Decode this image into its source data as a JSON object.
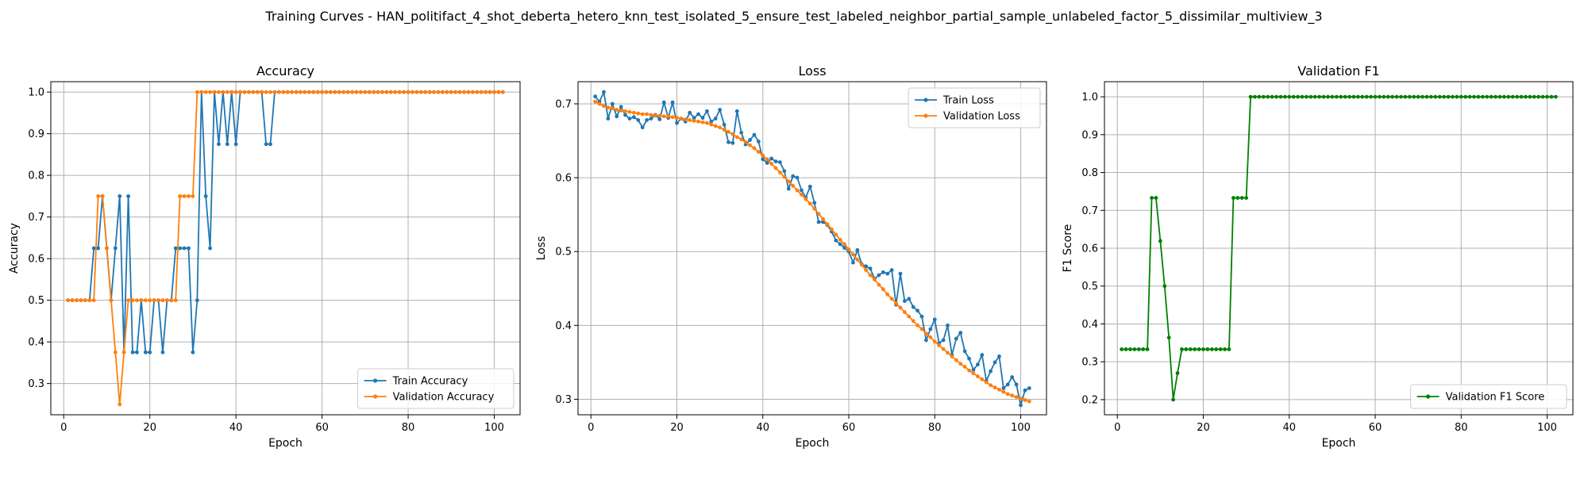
{
  "suptitle": "Training Curves - HAN_politifact_4_shot_deberta_hetero_knn_test_isolated_5_ensure_test_labeled_neighbor_partial_sample_unlabeled_factor_5_dissimilar_multiview_3",
  "chart_data": [
    {
      "type": "line",
      "title": "Accuracy",
      "xlabel": "Epoch",
      "ylabel": "Accuracy",
      "xlim": [
        -3,
        106
      ],
      "ylim": [
        0.225,
        1.025
      ],
      "xticks": [
        0,
        20,
        40,
        60,
        80,
        100
      ],
      "yticks": [
        0.3,
        0.4,
        0.5,
        0.6,
        0.7,
        0.8,
        0.9,
        1.0
      ],
      "ytick_labels": [
        "0.3",
        "0.4",
        "0.5",
        "0.6",
        "0.7",
        "0.8",
        "0.9",
        "1.0"
      ],
      "grid": true,
      "legend": "lower-right",
      "x": [
        1,
        2,
        3,
        4,
        5,
        6,
        7,
        8,
        9,
        10,
        11,
        12,
        13,
        14,
        15,
        16,
        17,
        18,
        19,
        20,
        21,
        22,
        23,
        24,
        25,
        26,
        27,
        28,
        29,
        30,
        31,
        32,
        33,
        34,
        35,
        36,
        37,
        38,
        39,
        40,
        41,
        42,
        43,
        44,
        45,
        46,
        47,
        48,
        49,
        50,
        51,
        52,
        53,
        54,
        55,
        56,
        57,
        58,
        59,
        60,
        61,
        62,
        63,
        64,
        65,
        66,
        67,
        68,
        69,
        70,
        71,
        72,
        73,
        74,
        75,
        76,
        77,
        78,
        79,
        80,
        81,
        82,
        83,
        84,
        85,
        86,
        87,
        88,
        89,
        90,
        91,
        92,
        93,
        94,
        95,
        96,
        97,
        98,
        99,
        100,
        101,
        102
      ],
      "series": [
        {
          "name": "Train Accuracy",
          "color": "#1f77b4",
          "values": [
            0.5,
            0.5,
            0.5,
            0.5,
            0.5,
            0.5,
            0.625,
            0.625,
            0.75,
            0.625,
            0.5,
            0.625,
            0.75,
            0.375,
            0.75,
            0.375,
            0.375,
            0.5,
            0.375,
            0.375,
            0.5,
            0.5,
            0.375,
            0.5,
            0.5,
            0.625,
            0.625,
            0.625,
            0.625,
            0.375,
            0.5,
            1.0,
            0.75,
            0.625,
            1.0,
            0.875,
            1.0,
            0.875,
            1.0,
            0.875,
            1.0,
            1.0,
            1.0,
            1.0,
            1.0,
            1.0,
            0.875,
            0.875,
            1.0,
            1.0,
            1.0,
            1.0,
            1.0,
            1.0,
            1.0,
            1.0,
            1.0,
            1.0,
            1.0,
            1.0,
            1.0,
            1.0,
            1.0,
            1.0,
            1.0,
            1.0,
            1.0,
            1.0,
            1.0,
            1.0,
            1.0,
            1.0,
            1.0,
            1.0,
            1.0,
            1.0,
            1.0,
            1.0,
            1.0,
            1.0,
            1.0,
            1.0,
            1.0,
            1.0,
            1.0,
            1.0,
            1.0,
            1.0,
            1.0,
            1.0,
            1.0,
            1.0,
            1.0,
            1.0,
            1.0,
            1.0,
            1.0,
            1.0,
            1.0,
            1.0,
            1.0,
            1.0
          ]
        },
        {
          "name": "Validation Accuracy",
          "color": "#ff7f0e",
          "values": [
            0.5,
            0.5,
            0.5,
            0.5,
            0.5,
            0.5,
            0.5,
            0.75,
            0.75,
            0.625,
            0.5,
            0.375,
            0.25,
            0.375,
            0.5,
            0.5,
            0.5,
            0.5,
            0.5,
            0.5,
            0.5,
            0.5,
            0.5,
            0.5,
            0.5,
            0.5,
            0.75,
            0.75,
            0.75,
            0.75,
            1.0,
            1.0,
            1.0,
            1.0,
            1.0,
            1.0,
            1.0,
            1.0,
            1.0,
            1.0,
            1.0,
            1.0,
            1.0,
            1.0,
            1.0,
            1.0,
            1.0,
            1.0,
            1.0,
            1.0,
            1.0,
            1.0,
            1.0,
            1.0,
            1.0,
            1.0,
            1.0,
            1.0,
            1.0,
            1.0,
            1.0,
            1.0,
            1.0,
            1.0,
            1.0,
            1.0,
            1.0,
            1.0,
            1.0,
            1.0,
            1.0,
            1.0,
            1.0,
            1.0,
            1.0,
            1.0,
            1.0,
            1.0,
            1.0,
            1.0,
            1.0,
            1.0,
            1.0,
            1.0,
            1.0,
            1.0,
            1.0,
            1.0,
            1.0,
            1.0,
            1.0,
            1.0,
            1.0,
            1.0,
            1.0,
            1.0,
            1.0,
            1.0,
            1.0,
            1.0,
            1.0,
            1.0
          ]
        }
      ]
    },
    {
      "type": "line",
      "title": "Loss",
      "xlabel": "Epoch",
      "ylabel": "Loss",
      "xlim": [
        -3,
        106
      ],
      "ylim": [
        0.279,
        0.73
      ],
      "xticks": [
        0,
        20,
        40,
        60,
        80,
        100
      ],
      "yticks": [
        0.3,
        0.4,
        0.5,
        0.6,
        0.7
      ],
      "ytick_labels": [
        "0.3",
        "0.4",
        "0.5",
        "0.6",
        "0.7"
      ],
      "grid": true,
      "legend": "top-right",
      "x": [
        1,
        2,
        3,
        4,
        5,
        6,
        7,
        8,
        9,
        10,
        11,
        12,
        13,
        14,
        15,
        16,
        17,
        18,
        19,
        20,
        21,
        22,
        23,
        24,
        25,
        26,
        27,
        28,
        29,
        30,
        31,
        32,
        33,
        34,
        35,
        36,
        37,
        38,
        39,
        40,
        41,
        42,
        43,
        44,
        45,
        46,
        47,
        48,
        49,
        50,
        51,
        52,
        53,
        54,
        55,
        56,
        57,
        58,
        59,
        60,
        61,
        62,
        63,
        64,
        65,
        66,
        67,
        68,
        69,
        70,
        71,
        72,
        73,
        74,
        75,
        76,
        77,
        78,
        79,
        80,
        81,
        82,
        83,
        84,
        85,
        86,
        87,
        88,
        89,
        90,
        91,
        92,
        93,
        94,
        95,
        96,
        97,
        98,
        99,
        100,
        101,
        102
      ],
      "series": [
        {
          "name": "Train Loss",
          "color": "#1f77b4",
          "values": [
            0.71,
            0.703,
            0.716,
            0.68,
            0.7,
            0.683,
            0.696,
            0.685,
            0.68,
            0.682,
            0.678,
            0.668,
            0.678,
            0.68,
            0.685,
            0.679,
            0.702,
            0.681,
            0.702,
            0.674,
            0.68,
            0.676,
            0.688,
            0.681,
            0.686,
            0.681,
            0.69,
            0.676,
            0.68,
            0.692,
            0.672,
            0.648,
            0.647,
            0.69,
            0.661,
            0.645,
            0.651,
            0.658,
            0.649,
            0.625,
            0.62,
            0.626,
            0.622,
            0.621,
            0.609,
            0.585,
            0.602,
            0.6,
            0.583,
            0.573,
            0.588,
            0.566,
            0.54,
            0.54,
            0.536,
            0.527,
            0.515,
            0.51,
            0.505,
            0.5,
            0.485,
            0.502,
            0.483,
            0.48,
            0.477,
            0.463,
            0.468,
            0.472,
            0.47,
            0.475,
            0.428,
            0.47,
            0.433,
            0.436,
            0.425,
            0.42,
            0.412,
            0.38,
            0.395,
            0.408,
            0.376,
            0.38,
            0.4,
            0.36,
            0.382,
            0.39,
            0.365,
            0.355,
            0.34,
            0.347,
            0.36,
            0.325,
            0.338,
            0.35,
            0.358,
            0.315,
            0.32,
            0.33,
            0.32,
            0.292,
            0.312,
            0.315
          ]
        },
        {
          "name": "Validation Loss",
          "color": "#ff7f0e",
          "values": [
            0.703,
            0.7,
            0.697,
            0.695,
            0.694,
            0.692,
            0.691,
            0.69,
            0.689,
            0.688,
            0.687,
            0.686,
            0.686,
            0.685,
            0.684,
            0.684,
            0.683,
            0.683,
            0.682,
            0.681,
            0.68,
            0.679,
            0.678,
            0.677,
            0.676,
            0.675,
            0.674,
            0.672,
            0.67,
            0.668,
            0.665,
            0.662,
            0.659,
            0.655,
            0.652,
            0.648,
            0.644,
            0.64,
            0.635,
            0.63,
            0.625,
            0.619,
            0.613,
            0.607,
            0.601,
            0.595,
            0.589,
            0.583,
            0.577,
            0.571,
            0.565,
            0.558,
            0.551,
            0.544,
            0.537,
            0.53,
            0.523,
            0.516,
            0.51,
            0.503,
            0.496,
            0.489,
            0.482,
            0.475,
            0.468,
            0.462,
            0.455,
            0.449,
            0.442,
            0.436,
            0.43,
            0.424,
            0.418,
            0.412,
            0.406,
            0.4,
            0.395,
            0.389,
            0.384,
            0.378,
            0.373,
            0.368,
            0.363,
            0.358,
            0.353,
            0.348,
            0.344,
            0.339,
            0.335,
            0.331,
            0.327,
            0.323,
            0.319,
            0.316,
            0.313,
            0.31,
            0.307,
            0.305,
            0.303,
            0.301,
            0.299,
            0.297
          ]
        }
      ]
    },
    {
      "type": "line",
      "title": "Validation F1",
      "xlabel": "Epoch",
      "ylabel": "F1 Score",
      "xlim": [
        -3,
        106
      ],
      "ylim": [
        0.16,
        1.04
      ],
      "xticks": [
        0,
        20,
        40,
        60,
        80,
        100
      ],
      "yticks": [
        0.2,
        0.3,
        0.4,
        0.5,
        0.6,
        0.7,
        0.8,
        0.9,
        1.0
      ],
      "ytick_labels": [
        "0.2",
        "0.3",
        "0.4",
        "0.5",
        "0.6",
        "0.7",
        "0.8",
        "0.9",
        "1.0"
      ],
      "grid": true,
      "legend": "lower-right",
      "x": [
        1,
        2,
        3,
        4,
        5,
        6,
        7,
        8,
        9,
        10,
        11,
        12,
        13,
        14,
        15,
        16,
        17,
        18,
        19,
        20,
        21,
        22,
        23,
        24,
        25,
        26,
        27,
        28,
        29,
        30,
        31,
        32,
        33,
        34,
        35,
        36,
        37,
        38,
        39,
        40,
        41,
        42,
        43,
        44,
        45,
        46,
        47,
        48,
        49,
        50,
        51,
        52,
        53,
        54,
        55,
        56,
        57,
        58,
        59,
        60,
        61,
        62,
        63,
        64,
        65,
        66,
        67,
        68,
        69,
        70,
        71,
        72,
        73,
        74,
        75,
        76,
        77,
        78,
        79,
        80,
        81,
        82,
        83,
        84,
        85,
        86,
        87,
        88,
        89,
        90,
        91,
        92,
        93,
        94,
        95,
        96,
        97,
        98,
        99,
        100,
        101,
        102
      ],
      "series": [
        {
          "name": "Validation F1 Score",
          "color": "#008000",
          "values": [
            0.333,
            0.333,
            0.333,
            0.333,
            0.333,
            0.333,
            0.333,
            0.733,
            0.733,
            0.619,
            0.5,
            0.364,
            0.2,
            0.27,
            0.333,
            0.333,
            0.333,
            0.333,
            0.333,
            0.333,
            0.333,
            0.333,
            0.333,
            0.333,
            0.333,
            0.333,
            0.733,
            0.733,
            0.733,
            0.733,
            1.0,
            1.0,
            1.0,
            1.0,
            1.0,
            1.0,
            1.0,
            1.0,
            1.0,
            1.0,
            1.0,
            1.0,
            1.0,
            1.0,
            1.0,
            1.0,
            1.0,
            1.0,
            1.0,
            1.0,
            1.0,
            1.0,
            1.0,
            1.0,
            1.0,
            1.0,
            1.0,
            1.0,
            1.0,
            1.0,
            1.0,
            1.0,
            1.0,
            1.0,
            1.0,
            1.0,
            1.0,
            1.0,
            1.0,
            1.0,
            1.0,
            1.0,
            1.0,
            1.0,
            1.0,
            1.0,
            1.0,
            1.0,
            1.0,
            1.0,
            1.0,
            1.0,
            1.0,
            1.0,
            1.0,
            1.0,
            1.0,
            1.0,
            1.0,
            1.0,
            1.0,
            1.0,
            1.0,
            1.0,
            1.0,
            1.0,
            1.0,
            1.0,
            1.0,
            1.0,
            1.0,
            1.0
          ]
        }
      ]
    }
  ]
}
